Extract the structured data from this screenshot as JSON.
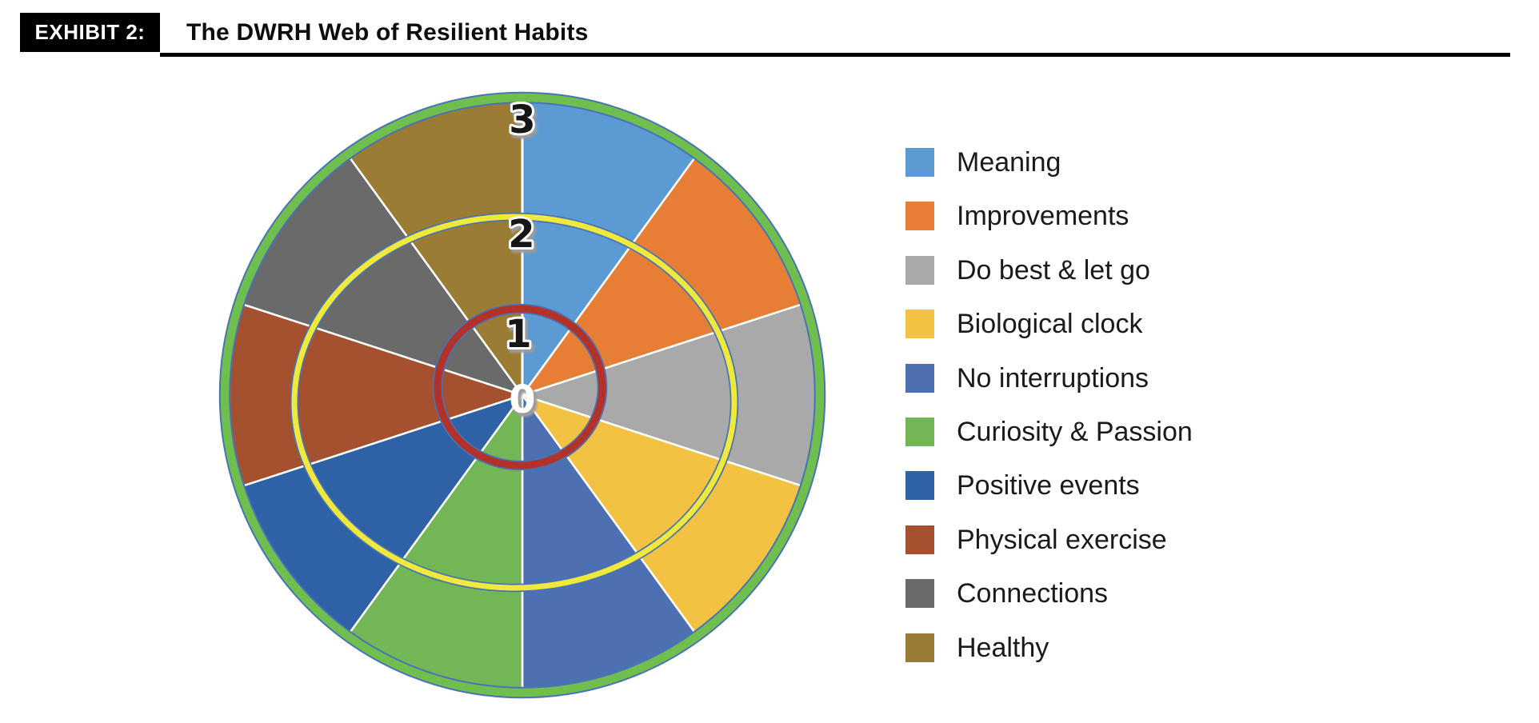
{
  "header": {
    "exhibit_label": "EXHIBIT 2:",
    "title": "The DWRH Web of Resilient Habits"
  },
  "legend": {
    "position": "right",
    "items": [
      {
        "label": "Meaning",
        "color": "#5C9AD3"
      },
      {
        "label": "Improvements",
        "color": "#E67E35"
      },
      {
        "label": "Do best & let go",
        "color": "#A9A9A9"
      },
      {
        "label": "Biological clock",
        "color": "#F3C242"
      },
      {
        "label": "No interruptions",
        "color": "#4D70B2"
      },
      {
        "label": "Curiosity & Passion",
        "color": "#73B656"
      },
      {
        "label": "Positive events",
        "color": "#2E61A5"
      },
      {
        "label": "Physical exercise",
        "color": "#A5512F"
      },
      {
        "label": "Connections",
        "color": "#6A6A6A"
      },
      {
        "label": "Healthy",
        "color": "#9B7C35"
      }
    ]
  },
  "chart_data": {
    "type": "pie",
    "title": "The DWRH Web of Resilient Habits",
    "description": "Dartboard-style wheel of 10 equal habit segments; radial scale 0-3 with concentric rings at 1 (red), 2 (yellow) and 3 (green); every segment filled to 3",
    "categories": [
      "Meaning",
      "Improvements",
      "Do best & let go",
      "Biological clock",
      "No interruptions",
      "Curiosity & Passion",
      "Positive events",
      "Physical exercise",
      "Connections",
      "Healthy"
    ],
    "values": [
      3,
      3,
      3,
      3,
      3,
      3,
      3,
      3,
      3,
      3
    ],
    "slices": [
      {
        "label": "Meaning",
        "color": "#5C9AD3"
      },
      {
        "label": "Improvements",
        "color": "#E67E35"
      },
      {
        "label": "Do best & let go",
        "color": "#A9A9A9"
      },
      {
        "label": "Biological clock",
        "color": "#F3C242"
      },
      {
        "label": "No interruptions",
        "color": "#4D70B2"
      },
      {
        "label": "Curiosity & Passion",
        "color": "#73B656"
      },
      {
        "label": "Positive events",
        "color": "#2E61A5"
      },
      {
        "label": "Physical exercise",
        "color": "#A5512F"
      },
      {
        "label": "Connections",
        "color": "#6A6A6A"
      },
      {
        "label": "Healthy",
        "color": "#9B7C35"
      }
    ],
    "axis_range": [
      0,
      3
    ],
    "axis_ticks": [
      "0",
      "1",
      "2",
      "3"
    ],
    "rings": [
      {
        "value": 1,
        "color": "#B23229"
      },
      {
        "value": 2,
        "color": "#F0E93C"
      },
      {
        "value": 3,
        "color": "#6FBE4E"
      }
    ],
    "styles": {
      "separator_color": "#FFFFFF",
      "ring_edge_color": "#4873B5",
      "tick_color": "#161616",
      "tick_halo": "#FFFFFF",
      "tick_shadow": "#9B9B9B",
      "center_tick_color": "#FFFFFF"
    },
    "legend_position": "right",
    "grid": true
  }
}
